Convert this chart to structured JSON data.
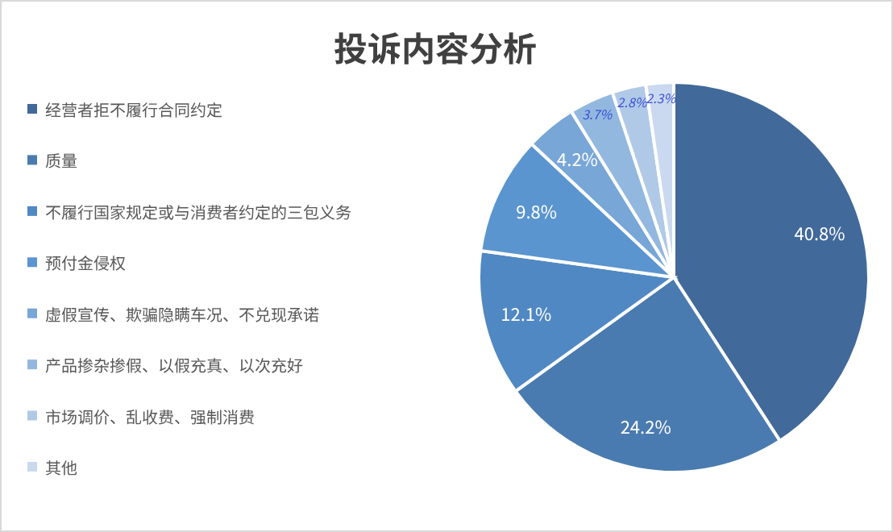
{
  "chart_data": {
    "type": "pie",
    "title": "投诉内容分析",
    "categories": [
      "经营者拒不履行合同约定",
      "质量",
      "不履行国家规定或与消费者约定的三包义务",
      "预付金侵权",
      "虚假宣传、欺骗隐瞒车况、不兑现承诺",
      "产品掺杂掺假、以假充真、以次充好",
      "市场调价、乱收费、强制消费",
      "其他"
    ],
    "values": [
      40.8,
      24.2,
      12.1,
      9.8,
      4.2,
      3.7,
      2.8,
      2.3
    ],
    "value_labels": [
      "40.8%",
      "24.2%",
      "12.1%",
      "9.8%",
      "4.2%",
      "3.7%",
      "2.8%",
      "2.3%"
    ],
    "colors": [
      "#41699a",
      "#4a7bb0",
      "#5088c3",
      "#5a95cf",
      "#77a6d7",
      "#93b8df",
      "#b0c9e7",
      "#cad9ef"
    ],
    "legend": "left"
  }
}
